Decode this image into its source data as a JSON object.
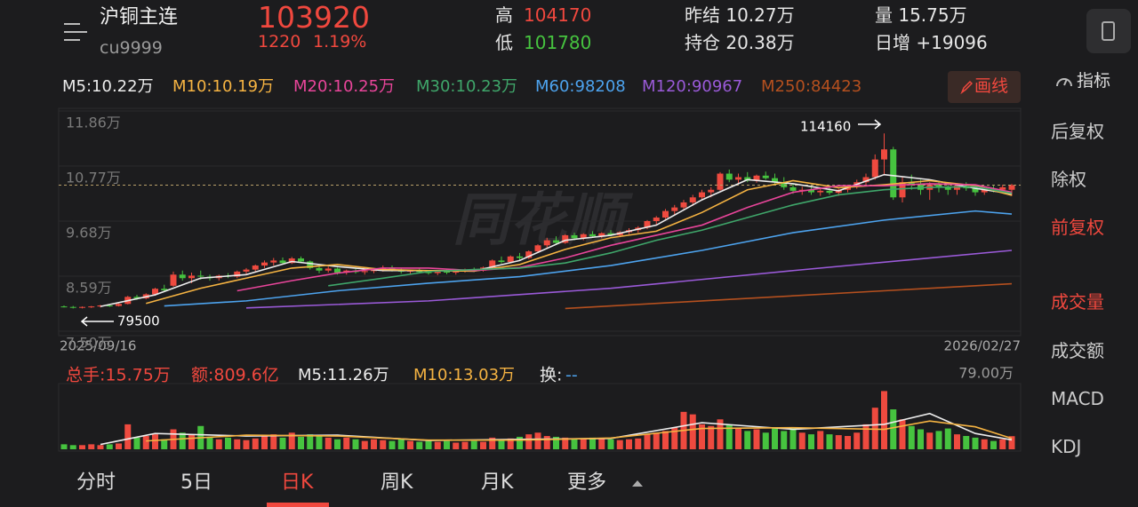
{
  "header": {
    "name": "沪铜主连",
    "code": "cu9999",
    "price": "103920",
    "change": "1220",
    "change_pct": "1.19%",
    "high_label": "高",
    "high": "104170",
    "low_label": "低",
    "low": "101780",
    "prev_settle": "昨结 10.27万",
    "open_interest": "持仓 20.38万",
    "volume": "量 15.75万",
    "daily_increase": "日增 +19096"
  },
  "toolbar": {
    "draw_line": "画线",
    "indicator": "指标"
  },
  "side_menu": [
    "后复权",
    "除权",
    "前复权",
    "成交量",
    "成交额",
    "MACD",
    "KDJ"
  ],
  "tabs": [
    "分时",
    "5日",
    "日K",
    "周K",
    "月K",
    "更多"
  ],
  "chart_data": {
    "type": "candlestick",
    "watermark": "同花顺",
    "up_color": "#ee4a3f",
    "down_color": "#46c33f",
    "grid": true,
    "ylim": [
      7.5,
      11.86
    ],
    "yticks": [
      {
        "value": 11.86,
        "label": "11.86万"
      },
      {
        "value": 10.77,
        "label": "10.77万"
      },
      {
        "value": 9.68,
        "label": "9.68万"
      },
      {
        "value": 8.59,
        "label": "8.59万"
      },
      {
        "value": 7.5,
        "label": "7.50万"
      }
    ],
    "date_labels": [
      "2025/09/16",
      "2026/02/27"
    ],
    "high_annotation": "114160",
    "low_annotation": "79500",
    "candles": [
      [
        7.99,
        8.01,
        7.97,
        7.98
      ],
      [
        7.98,
        8.0,
        7.95,
        7.97
      ],
      [
        7.97,
        7.99,
        7.95,
        7.98
      ],
      [
        7.98,
        8.0,
        7.96,
        7.99
      ],
      [
        7.99,
        8.02,
        7.97,
        8.01
      ],
      [
        8.01,
        8.03,
        7.98,
        8.0
      ],
      [
        8.0,
        8.05,
        7.99,
        8.04
      ],
      [
        8.04,
        8.2,
        8.03,
        8.18
      ],
      [
        8.18,
        8.22,
        8.12,
        8.15
      ],
      [
        8.15,
        8.25,
        8.13,
        8.23
      ],
      [
        8.23,
        8.36,
        8.2,
        8.34
      ],
      [
        8.34,
        8.42,
        8.28,
        8.31
      ],
      [
        8.4,
        8.68,
        8.38,
        8.62
      ],
      [
        8.62,
        8.7,
        8.5,
        8.55
      ],
      [
        8.55,
        8.66,
        8.45,
        8.6
      ],
      [
        8.6,
        8.7,
        8.52,
        8.58
      ],
      [
        8.58,
        8.62,
        8.5,
        8.55
      ],
      [
        8.55,
        8.62,
        8.5,
        8.6
      ],
      [
        8.6,
        8.65,
        8.55,
        8.58
      ],
      [
        8.58,
        8.7,
        8.55,
        8.68
      ],
      [
        8.68,
        8.75,
        8.62,
        8.72
      ],
      [
        8.72,
        8.82,
        8.68,
        8.8
      ],
      [
        8.8,
        8.9,
        8.75,
        8.86
      ],
      [
        8.86,
        8.95,
        8.8,
        8.9
      ],
      [
        8.9,
        8.96,
        8.82,
        8.85
      ],
      [
        8.85,
        8.97,
        8.83,
        8.94
      ],
      [
        8.94,
        8.98,
        8.85,
        8.88
      ],
      [
        8.88,
        8.9,
        8.72,
        8.75
      ],
      [
        8.75,
        8.8,
        8.65,
        8.7
      ],
      [
        8.7,
        8.78,
        8.66,
        8.74
      ],
      [
        8.74,
        8.76,
        8.62,
        8.66
      ],
      [
        8.66,
        8.72,
        8.62,
        8.7
      ],
      [
        8.7,
        8.74,
        8.64,
        8.67
      ],
      [
        8.67,
        8.72,
        8.62,
        8.69
      ],
      [
        8.69,
        8.75,
        8.65,
        8.72
      ],
      [
        8.72,
        8.8,
        8.68,
        8.76
      ],
      [
        8.76,
        8.8,
        8.68,
        8.7
      ],
      [
        8.7,
        8.74,
        8.64,
        8.68
      ],
      [
        8.68,
        8.72,
        8.63,
        8.7
      ],
      [
        8.7,
        8.74,
        8.65,
        8.67
      ],
      [
        8.67,
        8.7,
        8.62,
        8.65
      ],
      [
        8.65,
        8.7,
        8.61,
        8.68
      ],
      [
        8.68,
        8.72,
        8.63,
        8.66
      ],
      [
        8.66,
        8.7,
        8.62,
        8.69
      ],
      [
        8.69,
        8.74,
        8.66,
        8.72
      ],
      [
        8.72,
        8.76,
        8.67,
        8.7
      ],
      [
        8.7,
        8.78,
        8.68,
        8.76
      ],
      [
        8.76,
        8.92,
        8.74,
        8.9
      ],
      [
        8.9,
        8.98,
        8.84,
        8.87
      ],
      [
        8.87,
        9.0,
        8.85,
        8.98
      ],
      [
        8.98,
        9.05,
        8.9,
        8.95
      ],
      [
        8.95,
        9.1,
        8.93,
        9.08
      ],
      [
        9.08,
        9.22,
        9.05,
        9.2
      ],
      [
        9.2,
        9.35,
        9.15,
        9.3
      ],
      [
        9.3,
        9.38,
        9.22,
        9.25
      ],
      [
        9.25,
        9.42,
        9.23,
        9.4
      ],
      [
        9.4,
        9.45,
        9.3,
        9.34
      ],
      [
        9.34,
        9.44,
        9.3,
        9.42
      ],
      [
        9.42,
        9.48,
        9.36,
        9.38
      ],
      [
        9.38,
        9.46,
        9.34,
        9.44
      ],
      [
        9.44,
        9.5,
        9.38,
        9.4
      ],
      [
        9.4,
        9.48,
        9.36,
        9.46
      ],
      [
        9.46,
        9.54,
        9.42,
        9.5
      ],
      [
        9.5,
        9.58,
        9.45,
        9.55
      ],
      [
        9.55,
        9.7,
        9.52,
        9.68
      ],
      [
        9.68,
        9.78,
        9.6,
        9.75
      ],
      [
        9.75,
        9.92,
        9.72,
        9.88
      ],
      [
        9.88,
        10.0,
        9.8,
        9.95
      ],
      [
        9.95,
        10.1,
        9.9,
        10.05
      ],
      [
        10.05,
        10.2,
        9.98,
        10.15
      ],
      [
        10.15,
        10.3,
        10.1,
        10.25
      ],
      [
        10.25,
        10.35,
        10.15,
        10.3
      ],
      [
        10.3,
        10.65,
        10.28,
        10.62
      ],
      [
        10.62,
        10.7,
        10.45,
        10.5
      ],
      [
        10.5,
        10.62,
        10.42,
        10.55
      ],
      [
        10.55,
        10.65,
        10.45,
        10.48
      ],
      [
        10.48,
        10.6,
        10.44,
        10.58
      ],
      [
        10.58,
        10.66,
        10.5,
        10.53
      ],
      [
        10.53,
        10.62,
        10.4,
        10.45
      ],
      [
        10.45,
        10.55,
        10.3,
        10.35
      ],
      [
        10.35,
        10.42,
        10.22,
        10.28
      ],
      [
        10.28,
        10.36,
        10.2,
        10.3
      ],
      [
        10.3,
        10.38,
        10.2,
        10.25
      ],
      [
        10.25,
        10.33,
        10.18,
        10.28
      ],
      [
        10.28,
        10.35,
        10.2,
        10.24
      ],
      [
        10.24,
        10.32,
        10.18,
        10.3
      ],
      [
        10.3,
        10.4,
        10.25,
        10.36
      ],
      [
        10.36,
        10.5,
        10.32,
        10.45
      ],
      [
        10.45,
        10.62,
        10.4,
        10.55
      ],
      [
        10.55,
        11.0,
        10.5,
        10.9
      ],
      [
        10.9,
        11.416,
        10.6,
        11.1
      ],
      [
        11.1,
        11.15,
        10.1,
        10.15
      ],
      [
        10.15,
        10.55,
        10.05,
        10.45
      ],
      [
        10.45,
        10.6,
        10.3,
        10.4
      ],
      [
        10.4,
        10.5,
        10.2,
        10.3
      ],
      [
        10.3,
        10.45,
        10.1,
        10.4
      ],
      [
        10.4,
        10.48,
        10.25,
        10.35
      ],
      [
        10.35,
        10.42,
        10.2,
        10.3
      ],
      [
        10.3,
        10.4,
        10.2,
        10.38
      ],
      [
        10.38,
        10.45,
        10.28,
        10.33
      ],
      [
        10.33,
        10.4,
        10.18,
        10.25
      ],
      [
        10.25,
        10.35,
        10.2,
        10.32
      ],
      [
        10.32,
        10.38,
        10.25,
        10.3
      ],
      [
        10.3,
        10.4,
        10.26,
        10.35
      ],
      [
        10.3,
        10.417,
        10.178,
        10.392
      ]
    ],
    "ma_lines": [
      {
        "label": "M5:10.22万",
        "color": "#ececec",
        "x": [
          4,
          10,
          15,
          20,
          25,
          30,
          35,
          40,
          45,
          50,
          55,
          60,
          65,
          70,
          75,
          80,
          85,
          90,
          95,
          100,
          104
        ],
        "values": [
          7.99,
          8.22,
          8.55,
          8.62,
          8.88,
          8.78,
          8.7,
          8.7,
          8.69,
          8.9,
          9.3,
          9.4,
          9.6,
          10.1,
          10.5,
          10.42,
          10.28,
          10.6,
          10.5,
          10.33,
          10.22
        ]
      },
      {
        "label": "M10:10.19万",
        "color": "#f5b342",
        "x": [
          9,
          15,
          20,
          25,
          30,
          35,
          40,
          45,
          50,
          55,
          60,
          65,
          70,
          75,
          80,
          85,
          90,
          95,
          100,
          104
        ],
        "values": [
          8.05,
          8.35,
          8.55,
          8.75,
          8.82,
          8.72,
          8.7,
          8.69,
          8.82,
          9.12,
          9.35,
          9.48,
          9.85,
          10.3,
          10.48,
          10.34,
          10.4,
          10.48,
          10.38,
          10.19
        ]
      },
      {
        "label": "M20:10.25万",
        "color": "#e8459a",
        "x": [
          19,
          25,
          30,
          35,
          40,
          45,
          50,
          55,
          60,
          65,
          70,
          75,
          80,
          85,
          90,
          95,
          100,
          104
        ],
        "values": [
          8.3,
          8.5,
          8.65,
          8.75,
          8.75,
          8.7,
          8.76,
          8.95,
          9.2,
          9.4,
          9.6,
          9.95,
          10.25,
          10.38,
          10.38,
          10.42,
          10.4,
          10.25
        ]
      },
      {
        "label": "M30:10.23万",
        "color": "#3fa66a",
        "x": [
          29,
          35,
          40,
          45,
          50,
          55,
          60,
          65,
          70,
          75,
          80,
          85,
          90,
          95,
          100,
          104
        ],
        "values": [
          8.4,
          8.55,
          8.68,
          8.72,
          8.75,
          8.85,
          9.05,
          9.3,
          9.5,
          9.75,
          10.0,
          10.2,
          10.3,
          10.35,
          10.36,
          10.23
        ]
      },
      {
        "label": "M60:98208",
        "color": "#4da3ee",
        "x": [
          11,
          20,
          30,
          40,
          50,
          60,
          70,
          80,
          90,
          100,
          104
        ],
        "values": [
          8.0,
          8.1,
          8.3,
          8.45,
          8.58,
          8.8,
          9.1,
          9.45,
          9.7,
          9.88,
          9.82
        ]
      },
      {
        "label": "M120:90967",
        "color": "#9a5ad8",
        "x": [
          20,
          40,
          60,
          80,
          95,
          104
        ],
        "values": [
          7.96,
          8.1,
          8.35,
          8.7,
          8.95,
          9.1
        ]
      },
      {
        "label": "M250:84423",
        "color": "#b5501f",
        "x": [
          55,
          75,
          95,
          104
        ],
        "values": [
          7.95,
          8.15,
          8.35,
          8.44
        ]
      }
    ],
    "volume_ylim": [
      0,
      79
    ],
    "volume_ticks": [
      {
        "value": 79,
        "label": "79.00万"
      }
    ],
    "volume_legend": {
      "total": "总手:15.75万",
      "amount": "额:809.6亿",
      "turnover": "换:",
      "turnover_value": "--"
    },
    "volumes": [
      6,
      5,
      5,
      6,
      5,
      6,
      7,
      30,
      14,
      16,
      18,
      12,
      24,
      20,
      18,
      28,
      15,
      12,
      14,
      12,
      11,
      13,
      16,
      18,
      14,
      20,
      15,
      18,
      16,
      14,
      12,
      14,
      12,
      10,
      12,
      11,
      10,
      12,
      10,
      9,
      10,
      9,
      10,
      8,
      9,
      10,
      9,
      14,
      12,
      13,
      15,
      18,
      20,
      16,
      15,
      14,
      13,
      12,
      14,
      13,
      12,
      11,
      12,
      13,
      18,
      20,
      22,
      26,
      45,
      42,
      30,
      28,
      36,
      30,
      26,
      22,
      24,
      20,
      25,
      22,
      26,
      20,
      18,
      22,
      18,
      17,
      16,
      20,
      30,
      50,
      70,
      48,
      36,
      28,
      24,
      20,
      22,
      25,
      18,
      16,
      14,
      12,
      10,
      12,
      15.75
    ],
    "volume_ma_lines": [
      {
        "label": "M5:11.26万",
        "color": "#ececec",
        "x": [
          4,
          10,
          20,
          30,
          40,
          50,
          60,
          70,
          80,
          90,
          95,
          100,
          104
        ],
        "values": [
          5.8,
          19,
          16,
          17,
          10.6,
          12,
          13,
          32,
          24,
          30,
          43,
          19,
          11.26
        ]
      },
      {
        "label": "M10:13.03万",
        "color": "#f5b342",
        "x": [
          9,
          20,
          30,
          40,
          50,
          60,
          70,
          80,
          90,
          95,
          100,
          104
        ],
        "values": [
          10,
          17,
          16,
          11,
          11,
          13.5,
          25,
          26,
          24,
          34,
          27,
          13.03
        ]
      }
    ]
  }
}
